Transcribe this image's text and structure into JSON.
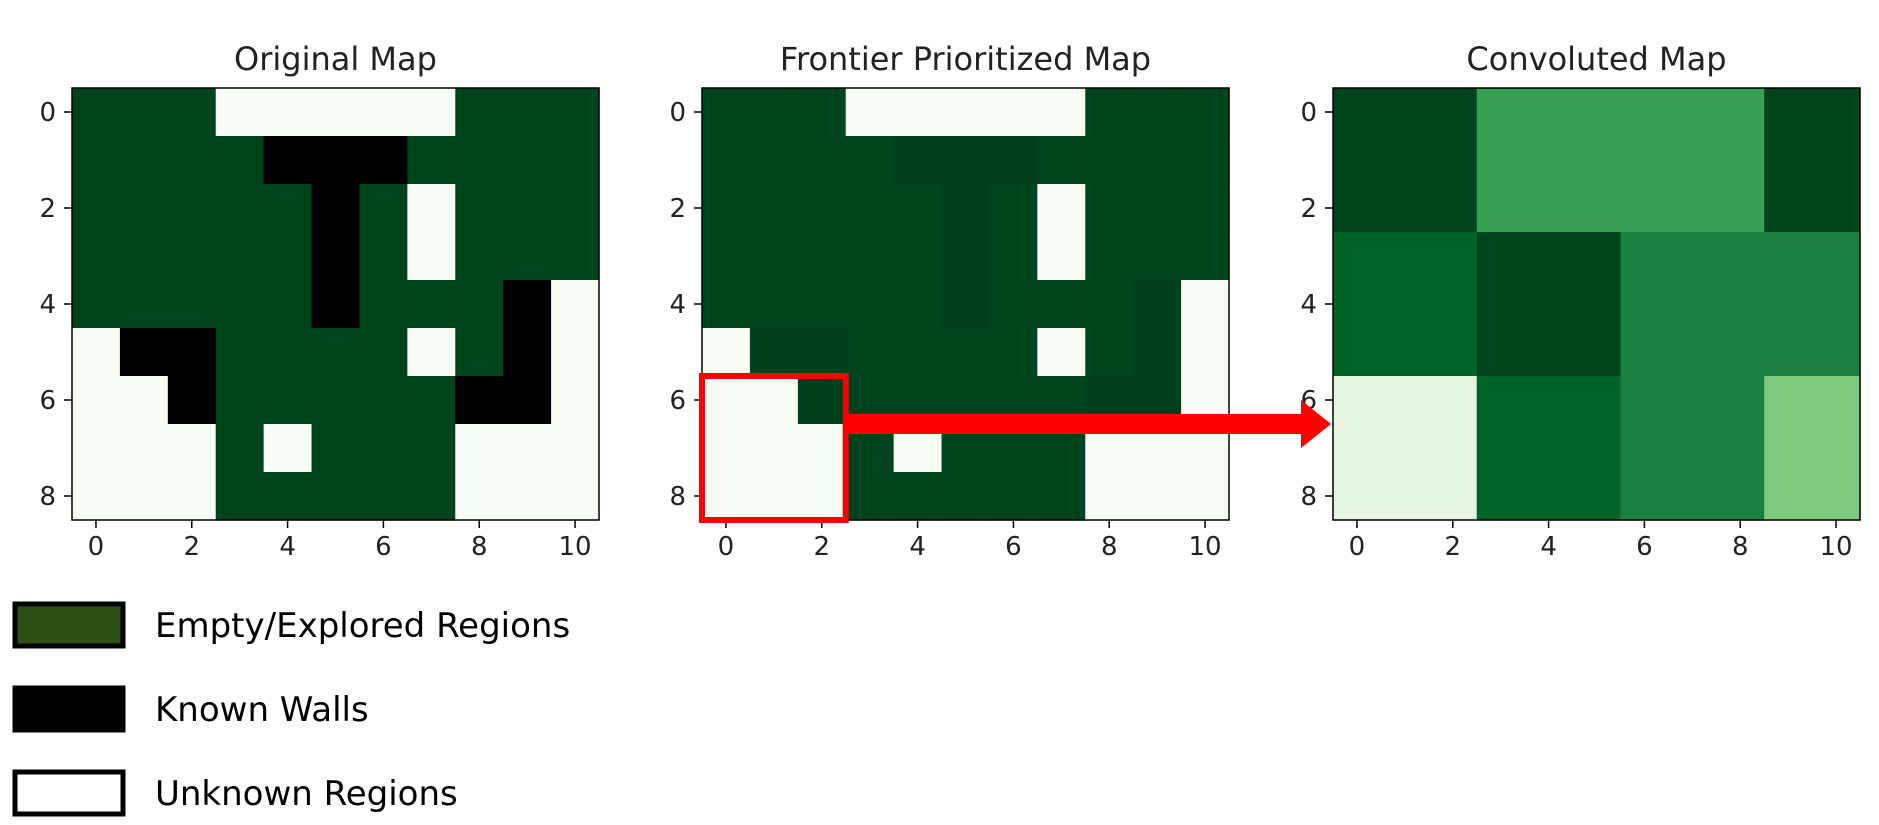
{
  "colors": {
    "wall": "#000000",
    "unknown": "#f7fcf5",
    "explored": "#00441b",
    "arrow": "#ff0000",
    "legend_explored": "#2d5016"
  },
  "chart_data": [
    {
      "type": "heatmap",
      "title": "Original Map",
      "xticks": [
        0,
        2,
        4,
        6,
        8,
        10
      ],
      "yticks": [
        0,
        2,
        4,
        6,
        8
      ],
      "xlim": [
        -0.5,
        10.5
      ],
      "ylim": [
        8.5,
        -0.5
      ],
      "grid": false,
      "cell_colors": [
        [
          "#00441b",
          "#00441b",
          "#00441b",
          "#f7fcf5",
          "#f7fcf5",
          "#f7fcf5",
          "#f7fcf5",
          "#f7fcf5",
          "#00441b",
          "#00441b",
          "#00441b"
        ],
        [
          "#00441b",
          "#00441b",
          "#00441b",
          "#00441b",
          "#000000",
          "#000000",
          "#000000",
          "#00441b",
          "#00441b",
          "#00441b",
          "#00441b"
        ],
        [
          "#00441b",
          "#00441b",
          "#00441b",
          "#00441b",
          "#00441b",
          "#000000",
          "#00441b",
          "#f7fcf5",
          "#00441b",
          "#00441b",
          "#00441b"
        ],
        [
          "#00441b",
          "#00441b",
          "#00441b",
          "#00441b",
          "#00441b",
          "#000000",
          "#00441b",
          "#f7fcf5",
          "#00441b",
          "#00441b",
          "#00441b"
        ],
        [
          "#00441b",
          "#00441b",
          "#00441b",
          "#00441b",
          "#00441b",
          "#000000",
          "#00441b",
          "#00441b",
          "#00441b",
          "#000000",
          "#f7fcf5"
        ],
        [
          "#f7fcf5",
          "#000000",
          "#000000",
          "#00441b",
          "#00441b",
          "#00441b",
          "#00441b",
          "#f7fcf5",
          "#00441b",
          "#000000",
          "#f7fcf5"
        ],
        [
          "#f7fcf5",
          "#f7fcf5",
          "#000000",
          "#00441b",
          "#00441b",
          "#00441b",
          "#00441b",
          "#00441b",
          "#000000",
          "#000000",
          "#f7fcf5"
        ],
        [
          "#f7fcf5",
          "#f7fcf5",
          "#f7fcf5",
          "#00441b",
          "#f7fcf5",
          "#00441b",
          "#00441b",
          "#00441b",
          "#f7fcf5",
          "#f7fcf5",
          "#f7fcf5"
        ],
        [
          "#f7fcf5",
          "#f7fcf5",
          "#f7fcf5",
          "#00441b",
          "#00441b",
          "#00441b",
          "#00441b",
          "#00441b",
          "#f7fcf5",
          "#f7fcf5",
          "#f7fcf5"
        ]
      ]
    },
    {
      "type": "heatmap",
      "title": "Frontier Prioritized Map",
      "xticks": [
        0,
        2,
        4,
        6,
        8,
        10
      ],
      "yticks": [
        0,
        2,
        4,
        6,
        8
      ],
      "xlim": [
        -0.5,
        10.5
      ],
      "ylim": [
        8.5,
        -0.5
      ],
      "grid": false,
      "cell_colors": [
        [
          "#00441b",
          "#00441b",
          "#00441b",
          "#f7fcf5",
          "#f7fcf5",
          "#f7fcf5",
          "#f7fcf5",
          "#f7fcf5",
          "#00441b",
          "#00441b",
          "#00441b"
        ],
        [
          "#00441b",
          "#00441b",
          "#00441b",
          "#00441b",
          "#00401a",
          "#00401a",
          "#00401a",
          "#00441b",
          "#00441b",
          "#00441b",
          "#00441b"
        ],
        [
          "#00441b",
          "#00441b",
          "#00441b",
          "#00441b",
          "#00441b",
          "#00401a",
          "#00441b",
          "#f7fcf5",
          "#00441b",
          "#00441b",
          "#00441b"
        ],
        [
          "#00441b",
          "#00441b",
          "#00441b",
          "#00441b",
          "#00441b",
          "#00401a",
          "#00441b",
          "#f7fcf5",
          "#00441b",
          "#00441b",
          "#00441b"
        ],
        [
          "#00441b",
          "#00441b",
          "#00441b",
          "#00441b",
          "#00441b",
          "#00401a",
          "#00441b",
          "#00441b",
          "#00441b",
          "#00401a",
          "#f7fcf5"
        ],
        [
          "#f7fcf5",
          "#00401a",
          "#00401a",
          "#00441b",
          "#00441b",
          "#00441b",
          "#00441b",
          "#f7fcf5",
          "#00441b",
          "#00401a",
          "#f7fcf5"
        ],
        [
          "#f7fcf5",
          "#f7fcf5",
          "#00401a",
          "#00441b",
          "#00441b",
          "#00441b",
          "#00441b",
          "#00441b",
          "#00401a",
          "#00401a",
          "#f7fcf5"
        ],
        [
          "#f7fcf5",
          "#f7fcf5",
          "#f7fcf5",
          "#00441b",
          "#f7fcf5",
          "#00441b",
          "#00441b",
          "#00441b",
          "#f7fcf5",
          "#f7fcf5",
          "#f7fcf5"
        ],
        [
          "#f7fcf5",
          "#f7fcf5",
          "#f7fcf5",
          "#00441b",
          "#00441b",
          "#00441b",
          "#00441b",
          "#00441b",
          "#f7fcf5",
          "#f7fcf5",
          "#f7fcf5"
        ]
      ],
      "highlight": {
        "x": [
          -0.5,
          2.5
        ],
        "y": [
          5.5,
          8.5
        ],
        "color": "#ff0000"
      }
    },
    {
      "type": "heatmap",
      "title": "Convoluted Map",
      "xticks": [
        0,
        2,
        4,
        6,
        8,
        10
      ],
      "yticks": [
        0,
        2,
        4,
        6,
        8
      ],
      "xlim": [
        -0.5,
        10.5
      ],
      "ylim": [
        8.5,
        -0.5
      ],
      "grid": false,
      "cell_colors": [
        [
          "#00441b",
          "#37a055",
          "#37a055",
          "#00441b"
        ],
        [
          "#006428",
          "#00441b",
          "#1a8040",
          "#1a8040"
        ],
        [
          "#e5f5e0",
          "#006428",
          "#1a8040",
          "#7fc97f"
        ]
      ],
      "block_x_edges": [
        -0.5,
        2.5,
        5.5,
        8.5,
        10.5
      ],
      "block_y_edges": [
        -0.5,
        2.5,
        5.5,
        8.5
      ]
    }
  ],
  "arrow": {
    "from_panel": 1,
    "to_panel": 2,
    "at_y": 6.5
  },
  "legend": {
    "items": [
      {
        "label": "Empty/Explored Regions",
        "color": "#2d5016"
      },
      {
        "label": "Known Walls",
        "color": "#000000"
      },
      {
        "label": "Unknown Regions",
        "color": "#ffffff"
      }
    ]
  }
}
